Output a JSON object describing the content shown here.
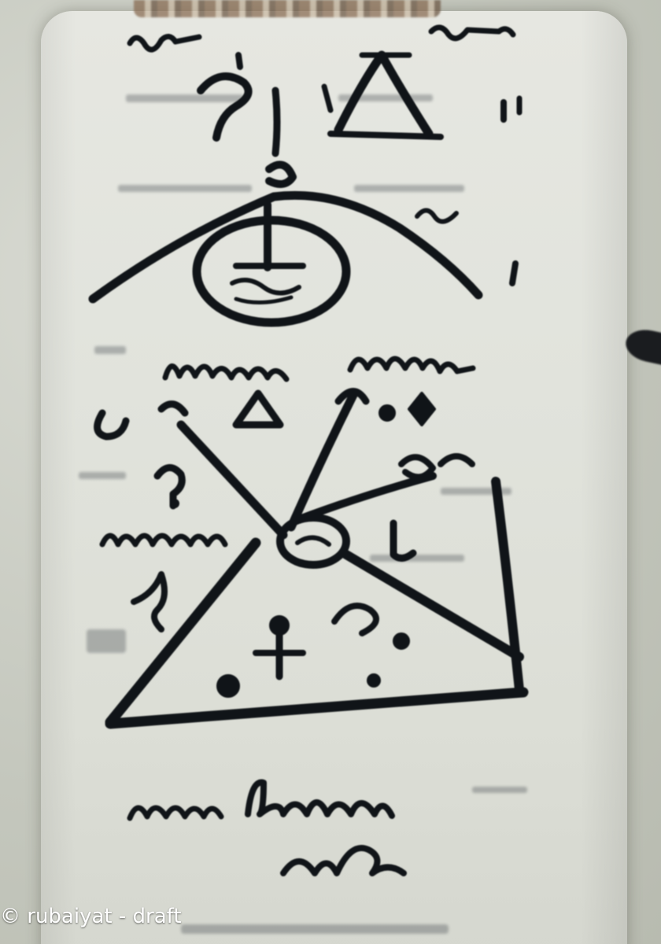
{
  "watermark": {
    "text": "© rubaiyat - draft",
    "color": "#ffffff"
  },
  "colors": {
    "ink": "#101418",
    "paper": "#e1e3dc",
    "background": "#c4c7bd"
  },
  "icons": {
    "top_glyph": "triangle-icon",
    "orb": "eye-circle-icon",
    "small_triangle": "triangle-icon",
    "cross": "ankh-cross-icon"
  }
}
